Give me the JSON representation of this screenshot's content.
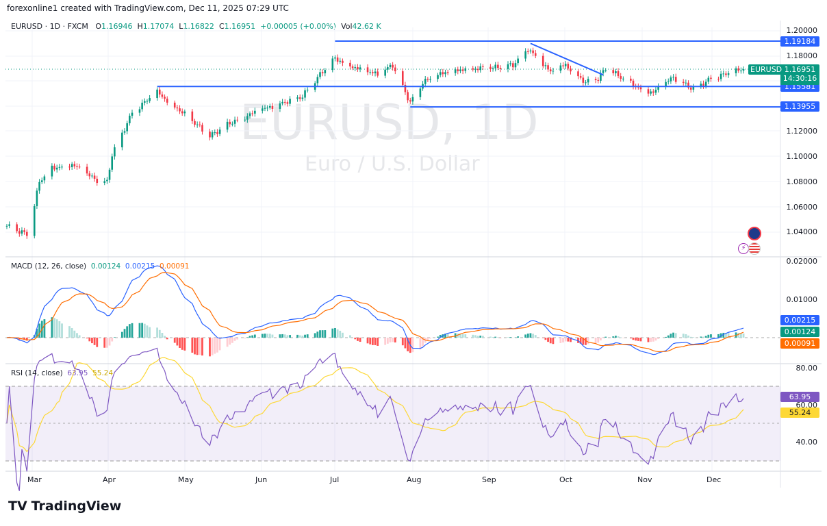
{
  "credit": "forexonline1 created with TradingView.com, Dec 11, 2025 07:29 UTC",
  "symbol": {
    "name": "EURUSD · 1D · FXCM",
    "o_label": "O",
    "o": "1.16946",
    "h_label": "H",
    "h": "1.17074",
    "l_label": "L",
    "l": "1.16822",
    "c_label": "C",
    "c": "1.16951",
    "change": "+0.00005 (+0.00%)",
    "vol_label": "Vol",
    "vol": "42.62 K"
  },
  "watermark": {
    "title": "EURUSD, 1D",
    "subtitle": "Euro / U.S. Dollar"
  },
  "price_tag": {
    "symbol": "EURUSD",
    "price": "1.16951",
    "countdown": "14:30:16"
  },
  "colors": {
    "up": "#089981",
    "down": "#f23645",
    "level": "#2962ff",
    "macd": "#2962ff",
    "signal": "#ff6d00",
    "rsi": "#7e57c2",
    "rsi_ma": "#fdd835"
  },
  "chart_data": [
    {
      "type": "candlestick",
      "title": "EURUSD",
      "ylim": [
        1.03,
        1.205
      ],
      "yticks": [
        "1.20000",
        "1.18000",
        "1.12000",
        "1.10000",
        "1.08000",
        "1.06000",
        "1.04000"
      ],
      "xticks": [
        "Mar",
        "Apr",
        "May",
        "Jun",
        "Jul",
        "Aug",
        "Sep",
        "Oct",
        "Nov",
        "Dec"
      ],
      "close_path": [
        [
          "2025-02-20",
          1.045
        ],
        [
          "2025-02-28",
          1.038
        ],
        [
          "2025-03-03",
          1.061
        ],
        [
          "2025-03-05",
          1.08
        ],
        [
          "2025-03-10",
          1.091
        ],
        [
          "2025-03-18",
          1.094
        ],
        [
          "2025-03-27",
          1.082
        ],
        [
          "2025-04-01",
          1.08
        ],
        [
          "2025-04-03",
          1.102
        ],
        [
          "2025-04-11",
          1.135
        ],
        [
          "2025-04-21",
          1.151
        ],
        [
          "2025-04-30",
          1.137
        ],
        [
          "2025-05-12",
          1.116
        ],
        [
          "2025-05-20",
          1.127
        ],
        [
          "2025-05-30",
          1.135
        ],
        [
          "2025-06-10",
          1.143
        ],
        [
          "2025-06-18",
          1.148
        ],
        [
          "2025-06-25",
          1.165
        ],
        [
          "2025-07-01",
          1.178
        ],
        [
          "2025-07-10",
          1.17
        ],
        [
          "2025-07-18",
          1.165
        ],
        [
          "2025-07-24",
          1.173
        ],
        [
          "2025-07-31",
          1.143
        ],
        [
          "2025-08-05",
          1.159
        ],
        [
          "2025-08-14",
          1.167
        ],
        [
          "2025-08-22",
          1.17
        ],
        [
          "2025-09-01",
          1.17
        ],
        [
          "2025-09-10",
          1.173
        ],
        [
          "2025-09-16",
          1.186
        ],
        [
          "2025-09-25",
          1.167
        ],
        [
          "2025-10-01",
          1.173
        ],
        [
          "2025-10-09",
          1.159
        ],
        [
          "2025-10-14",
          1.162
        ],
        [
          "2025-10-17",
          1.17
        ],
        [
          "2025-10-24",
          1.162
        ],
        [
          "2025-10-31",
          1.154
        ],
        [
          "2025-11-05",
          1.151
        ],
        [
          "2025-11-13",
          1.163
        ],
        [
          "2025-11-21",
          1.154
        ],
        [
          "2025-11-28",
          1.162
        ],
        [
          "2025-12-05",
          1.166
        ],
        [
          "2025-12-11",
          1.16951
        ]
      ],
      "levels": [
        {
          "price": 1.19184,
          "label": "1.19184",
          "from": "2025-07-01"
        },
        {
          "price": 1.15581,
          "label": "1.15581",
          "from": "2025-04-21"
        },
        {
          "price": 1.13955,
          "label": "1.13955",
          "from": "2025-07-31"
        }
      ],
      "trendline": [
        [
          "2025-09-17",
          1.19
        ],
        [
          "2025-10-16",
          1.165
        ]
      ]
    },
    {
      "type": "macd",
      "title": "MACD (12, 26, close)",
      "values": {
        "macd": "0.00215",
        "histogram": "0.00124",
        "signal": "0.00091"
      },
      "yticks": [
        "0.02000",
        "0.01000"
      ],
      "ylim": [
        -0.005,
        0.022
      ]
    },
    {
      "type": "rsi",
      "title": "RSI (14, close)",
      "values": {
        "rsi": "63.95",
        "ma": "55.24"
      },
      "yticks": [
        "80.00",
        "60.00",
        "40.00"
      ],
      "bands": [
        70,
        30
      ]
    }
  ],
  "brand": "TradingView"
}
